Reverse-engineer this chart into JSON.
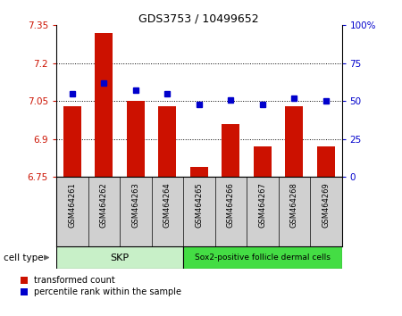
{
  "title": "GDS3753 / 10499652",
  "samples": [
    "GSM464261",
    "GSM464262",
    "GSM464263",
    "GSM464264",
    "GSM464265",
    "GSM464266",
    "GSM464267",
    "GSM464268",
    "GSM464269"
  ],
  "red_values": [
    7.03,
    7.32,
    7.05,
    7.03,
    6.79,
    6.96,
    6.87,
    7.03,
    6.87
  ],
  "blue_values": [
    55,
    62,
    57,
    55,
    48,
    51,
    48,
    52,
    50
  ],
  "ylim_left": [
    6.75,
    7.35
  ],
  "ylim_right": [
    0,
    100
  ],
  "yticks_left": [
    6.75,
    6.9,
    7.05,
    7.2,
    7.35
  ],
  "yticks_right": [
    0,
    25,
    50,
    75,
    100
  ],
  "ytick_labels_left": [
    "6.75",
    "6.9",
    "7.05",
    "7.2",
    "7.35"
  ],
  "ytick_labels_right": [
    "0",
    "25",
    "50",
    "75",
    "100%"
  ],
  "cell_type_label": "cell type",
  "legend_red": "transformed count",
  "legend_blue": "percentile rank within the sample",
  "bar_color": "#cc1100",
  "marker_color": "#0000cc",
  "background_color": "#ffffff",
  "skp_color": "#c8f0c8",
  "sox2_color": "#44dd44",
  "sample_box_color": "#d0d0d0",
  "grid_dotted_vals": [
    6.9,
    7.05,
    7.2
  ]
}
